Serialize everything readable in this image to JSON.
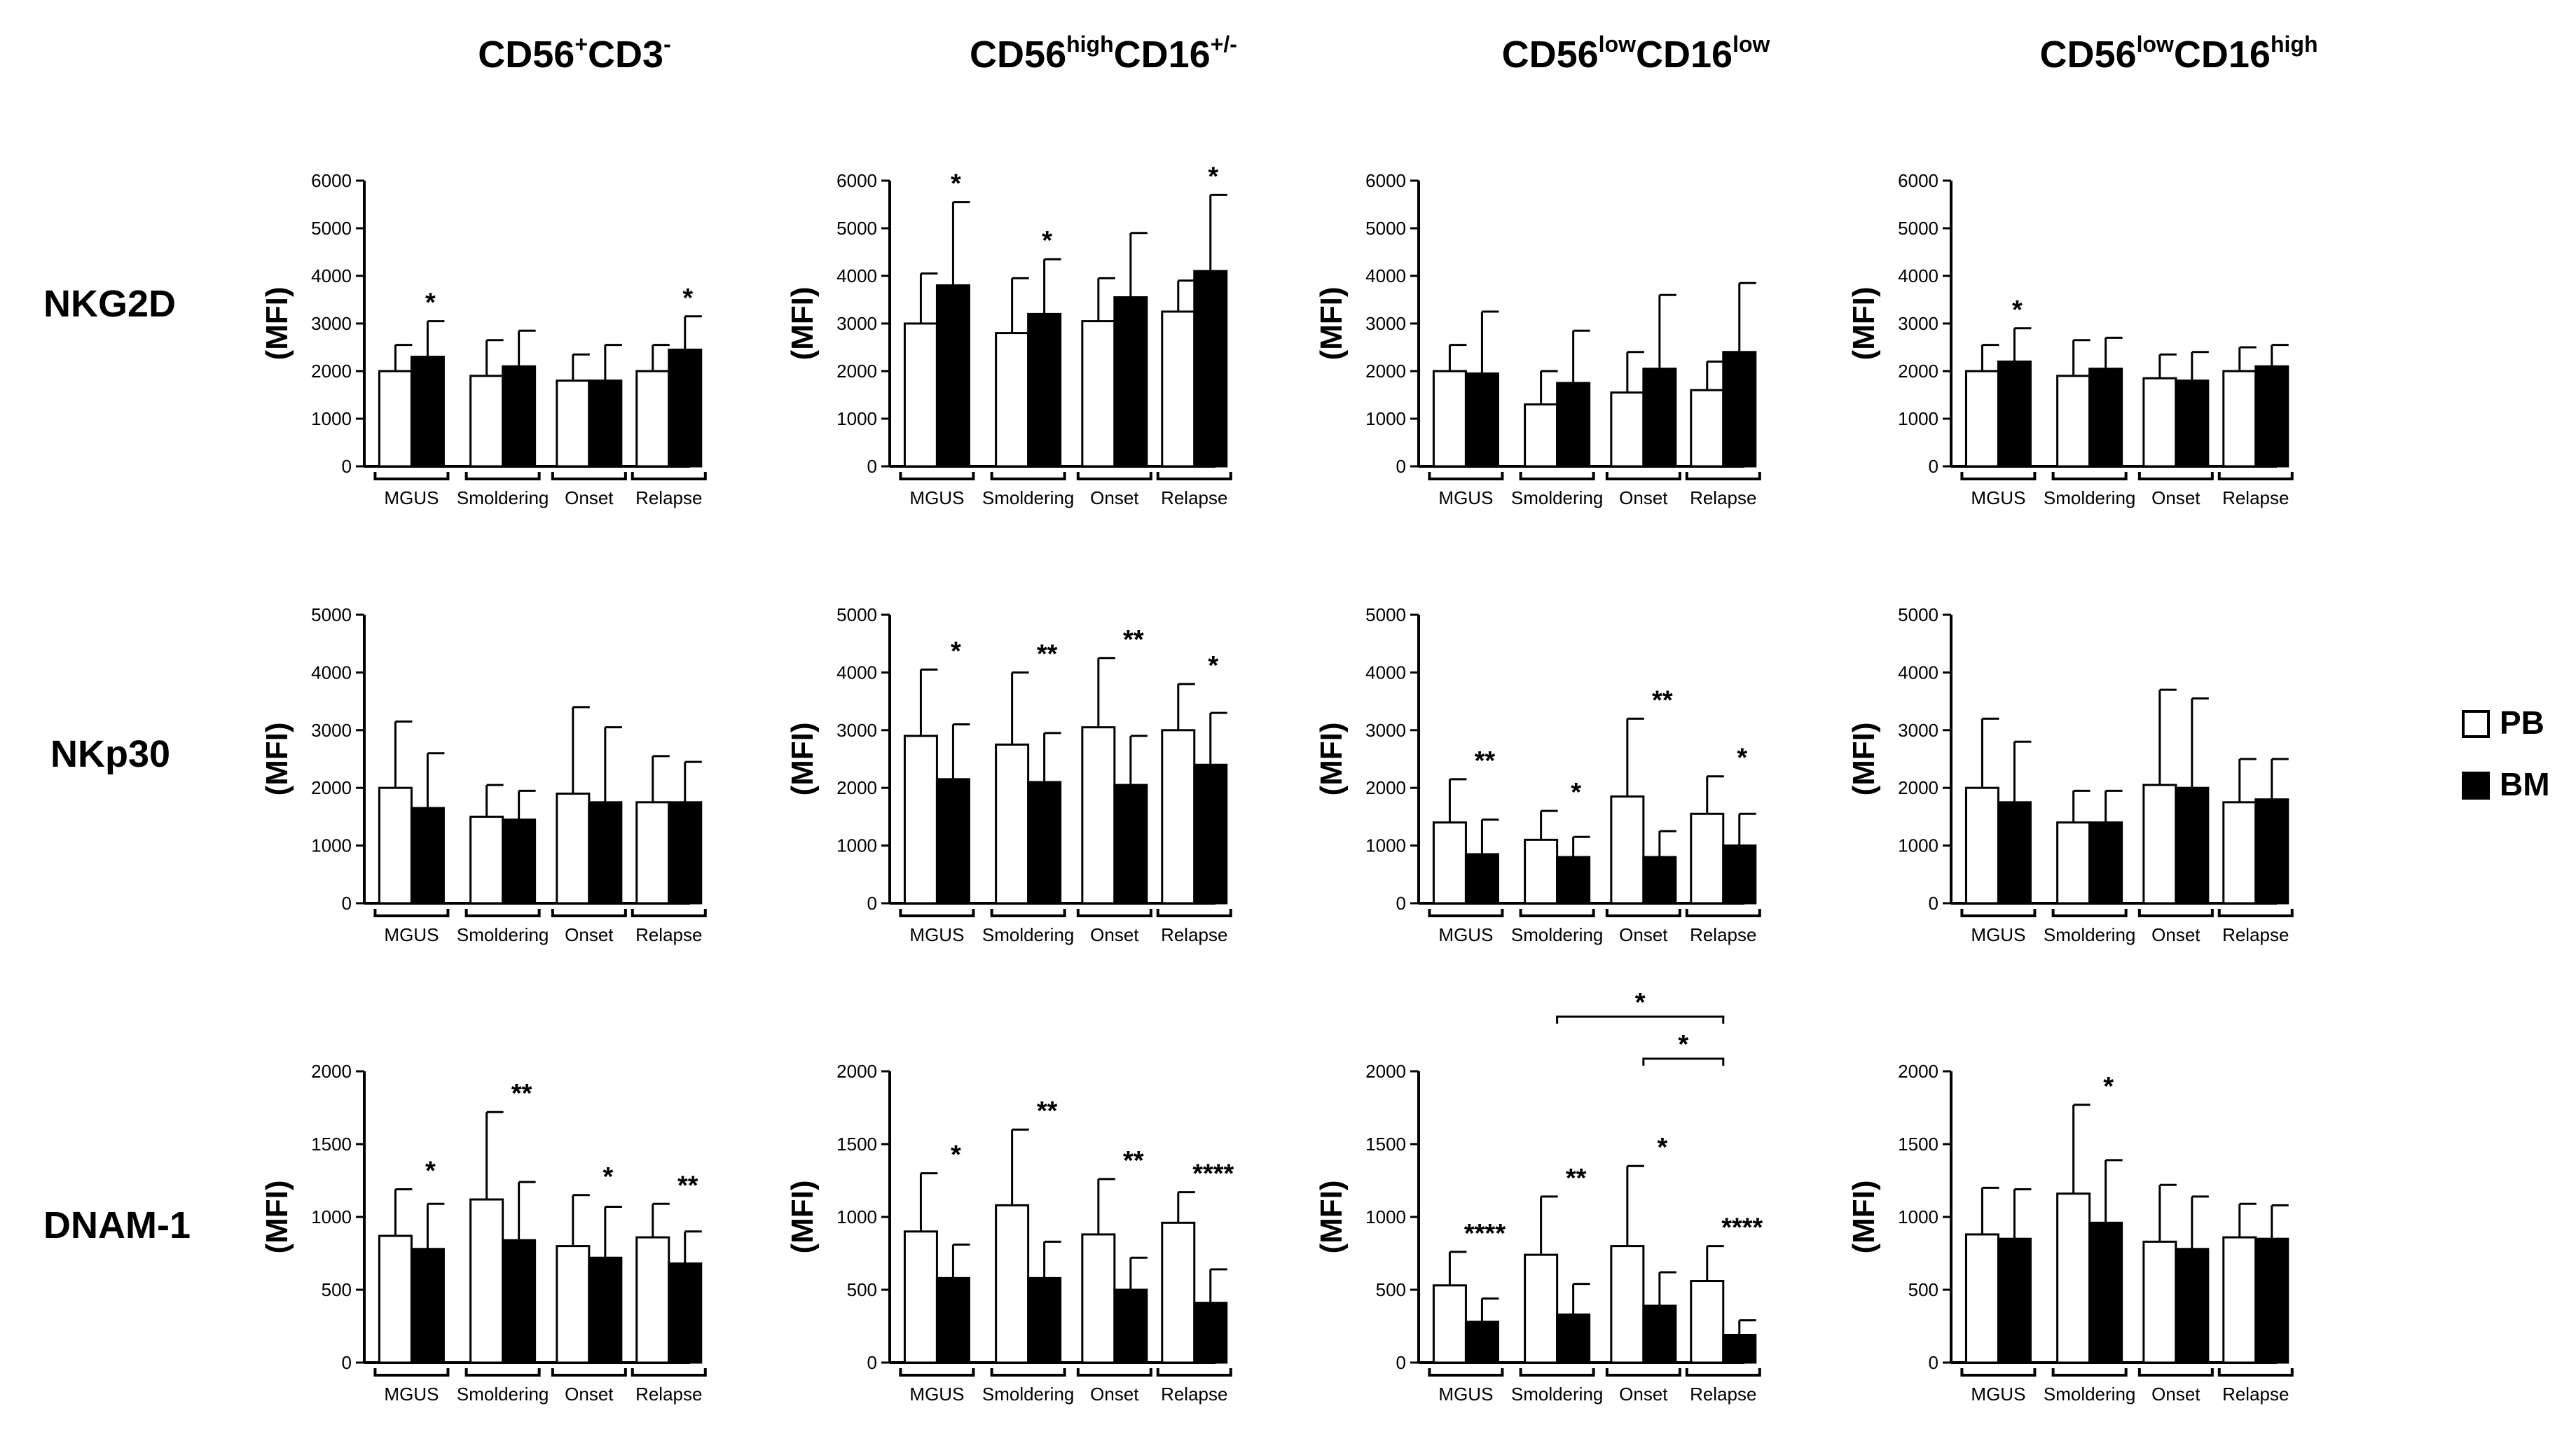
{
  "legend": [
    {
      "label": "PB",
      "fill": "#ffffff"
    },
    {
      "label": "BM",
      "fill": "#000000"
    }
  ],
  "columns": [
    {
      "base": "CD56",
      "sup1": "+",
      "mid": "CD3",
      "sup2": "-"
    },
    {
      "base": "CD56",
      "sup1": "high",
      "mid": "CD16",
      "sup2": "+/-"
    },
    {
      "base": "CD56",
      "sup1": "low",
      "mid": "CD16",
      "sup2": "low"
    },
    {
      "base": "CD56",
      "sup1": "low",
      "mid": "CD16",
      "sup2": "high"
    }
  ],
  "rows": [
    "NKG2D",
    "NKp30",
    "DNAM-1"
  ],
  "chart_data": [
    {
      "type": "bar",
      "row": "NKG2D",
      "column": "CD56+CD3-",
      "ylabel": "(MFI)",
      "ylim": [
        0,
        6000
      ],
      "yticks": [
        0,
        1000,
        2000,
        3000,
        4000,
        5000,
        6000
      ],
      "categories": [
        "MGUS",
        "Smoldering",
        "Onset",
        "Relapse"
      ],
      "series": [
        {
          "name": "PB",
          "values": [
            2000,
            1900,
            1800,
            2000
          ],
          "errors": [
            2550,
            2650,
            2350,
            2550
          ]
        },
        {
          "name": "BM",
          "values": [
            2300,
            2100,
            1800,
            2450
          ],
          "errors": [
            3050,
            2850,
            2550,
            3150
          ]
        }
      ],
      "annotations": [
        {
          "category": "MGUS",
          "text": "*"
        },
        {
          "category": "Relapse",
          "text": "*"
        }
      ]
    },
    {
      "type": "bar",
      "row": "NKG2D",
      "column": "CD56highCD16+/-",
      "ylabel": "(MFI)",
      "ylim": [
        0,
        6000
      ],
      "yticks": [
        0,
        1000,
        2000,
        3000,
        4000,
        5000,
        6000
      ],
      "categories": [
        "MGUS",
        "Smoldering",
        "Onset",
        "Relapse"
      ],
      "series": [
        {
          "name": "PB",
          "values": [
            3000,
            2800,
            3050,
            3250
          ],
          "errors": [
            4050,
            3950,
            3950,
            3900
          ]
        },
        {
          "name": "BM",
          "values": [
            3800,
            3200,
            3550,
            4100
          ],
          "errors": [
            5550,
            4350,
            4900,
            5700
          ]
        }
      ],
      "annotations": [
        {
          "category": "MGUS",
          "text": "*"
        },
        {
          "category": "Smoldering",
          "text": "*"
        },
        {
          "category": "Relapse",
          "text": "*"
        }
      ]
    },
    {
      "type": "bar",
      "row": "NKG2D",
      "column": "CD56lowCD16low",
      "ylabel": "(MFI)",
      "ylim": [
        0,
        6000
      ],
      "yticks": [
        0,
        1000,
        2000,
        3000,
        4000,
        5000,
        6000
      ],
      "categories": [
        "MGUS",
        "Smoldering",
        "Onset",
        "Relapse"
      ],
      "series": [
        {
          "name": "PB",
          "values": [
            2000,
            1300,
            1550,
            1600
          ],
          "errors": [
            2550,
            2000,
            2400,
            2200
          ]
        },
        {
          "name": "BM",
          "values": [
            1950,
            1750,
            2050,
            2400
          ],
          "errors": [
            3250,
            2850,
            3600,
            3850
          ]
        }
      ],
      "annotations": []
    },
    {
      "type": "bar",
      "row": "NKG2D",
      "column": "CD56lowCD16high",
      "ylabel": "(MFI)",
      "ylim": [
        0,
        6000
      ],
      "yticks": [
        0,
        1000,
        2000,
        3000,
        4000,
        5000,
        6000
      ],
      "categories": [
        "MGUS",
        "Smoldering",
        "Onset",
        "Relapse"
      ],
      "series": [
        {
          "name": "PB",
          "values": [
            2000,
            1900,
            1850,
            2000
          ],
          "errors": [
            2550,
            2650,
            2350,
            2500
          ]
        },
        {
          "name": "BM",
          "values": [
            2200,
            2050,
            1800,
            2100
          ],
          "errors": [
            2900,
            2700,
            2400,
            2550
          ]
        }
      ],
      "annotations": [
        {
          "category": "MGUS",
          "text": "*"
        }
      ]
    },
    {
      "type": "bar",
      "row": "NKp30",
      "column": "CD56+CD3-",
      "ylabel": "(MFI)",
      "ylim": [
        0,
        5000
      ],
      "yticks": [
        0,
        1000,
        2000,
        3000,
        4000,
        5000
      ],
      "categories": [
        "MGUS",
        "Smoldering",
        "Onset",
        "Relapse"
      ],
      "series": [
        {
          "name": "PB",
          "values": [
            2000,
            1500,
            1900,
            1750
          ],
          "errors": [
            3150,
            2050,
            3400,
            2550
          ]
        },
        {
          "name": "BM",
          "values": [
            1650,
            1450,
            1750,
            1750
          ],
          "errors": [
            2600,
            1950,
            3050,
            2450
          ]
        }
      ],
      "annotations": []
    },
    {
      "type": "bar",
      "row": "NKp30",
      "column": "CD56highCD16+/-",
      "ylabel": "(MFI)",
      "ylim": [
        0,
        5000
      ],
      "yticks": [
        0,
        1000,
        2000,
        3000,
        4000,
        5000
      ],
      "categories": [
        "MGUS",
        "Smoldering",
        "Onset",
        "Relapse"
      ],
      "series": [
        {
          "name": "PB",
          "values": [
            2900,
            2750,
            3050,
            3000
          ],
          "errors": [
            4050,
            4000,
            4250,
            3800
          ]
        },
        {
          "name": "BM",
          "values": [
            2150,
            2100,
            2050,
            2400
          ],
          "errors": [
            3100,
            2950,
            2900,
            3300
          ]
        }
      ],
      "annotations": [
        {
          "category": "MGUS",
          "text": "*"
        },
        {
          "category": "Smoldering",
          "text": "**"
        },
        {
          "category": "Onset",
          "text": "**"
        },
        {
          "category": "Relapse",
          "text": "*"
        }
      ]
    },
    {
      "type": "bar",
      "row": "NKp30",
      "column": "CD56lowCD16low",
      "ylabel": "(MFI)",
      "ylim": [
        0,
        5000
      ],
      "yticks": [
        0,
        1000,
        2000,
        3000,
        4000,
        5000
      ],
      "categories": [
        "MGUS",
        "Smoldering",
        "Onset",
        "Relapse"
      ],
      "series": [
        {
          "name": "PB",
          "values": [
            1400,
            1100,
            1850,
            1550
          ],
          "errors": [
            2150,
            1600,
            3200,
            2200
          ]
        },
        {
          "name": "BM",
          "values": [
            850,
            800,
            800,
            1000
          ],
          "errors": [
            1450,
            1150,
            1250,
            1550
          ]
        }
      ],
      "annotations": [
        {
          "category": "MGUS",
          "text": "**"
        },
        {
          "category": "Smoldering",
          "text": "*"
        },
        {
          "category": "Onset",
          "text": "**"
        },
        {
          "category": "Relapse",
          "text": "*"
        }
      ]
    },
    {
      "type": "bar",
      "row": "NKp30",
      "column": "CD56lowCD16high",
      "ylabel": "(MFI)",
      "ylim": [
        0,
        5000
      ],
      "yticks": [
        0,
        1000,
        2000,
        3000,
        4000,
        5000
      ],
      "categories": [
        "MGUS",
        "Smoldering",
        "Onset",
        "Relapse"
      ],
      "series": [
        {
          "name": "PB",
          "values": [
            2000,
            1400,
            2050,
            1750
          ],
          "errors": [
            3200,
            1950,
            3700,
            2500
          ]
        },
        {
          "name": "BM",
          "values": [
            1750,
            1400,
            2000,
            1800
          ],
          "errors": [
            2800,
            1950,
            3550,
            2500
          ]
        }
      ],
      "annotations": []
    },
    {
      "type": "bar",
      "row": "DNAM-1",
      "column": "CD56+CD3-",
      "ylabel": "(MFI)",
      "ylim": [
        0,
        2000
      ],
      "yticks": [
        0,
        500,
        1000,
        1500,
        2000
      ],
      "categories": [
        "MGUS",
        "Smoldering",
        "Onset",
        "Relapse"
      ],
      "series": [
        {
          "name": "PB",
          "values": [
            870,
            1120,
            800,
            860
          ],
          "errors": [
            1190,
            1720,
            1150,
            1090
          ]
        },
        {
          "name": "BM",
          "values": [
            780,
            840,
            720,
            680
          ],
          "errors": [
            1090,
            1240,
            1070,
            900
          ]
        }
      ],
      "annotations": [
        {
          "category": "MGUS",
          "text": "*"
        },
        {
          "category": "Smoldering",
          "text": "**"
        },
        {
          "category": "Onset",
          "text": "*"
        },
        {
          "category": "Relapse",
          "text": "**"
        }
      ]
    },
    {
      "type": "bar",
      "row": "DNAM-1",
      "column": "CD56highCD16+/-",
      "ylabel": "(MFI)",
      "ylim": [
        0,
        2000
      ],
      "yticks": [
        0,
        500,
        1000,
        1500,
        2000
      ],
      "categories": [
        "MGUS",
        "Smoldering",
        "Onset",
        "Relapse"
      ],
      "series": [
        {
          "name": "PB",
          "values": [
            900,
            1080,
            880,
            960
          ],
          "errors": [
            1300,
            1600,
            1260,
            1170
          ]
        },
        {
          "name": "BM",
          "values": [
            580,
            580,
            500,
            410
          ],
          "errors": [
            810,
            830,
            720,
            640
          ]
        }
      ],
      "annotations": [
        {
          "category": "MGUS",
          "text": "*"
        },
        {
          "category": "Smoldering",
          "text": "**"
        },
        {
          "category": "Onset",
          "text": "**"
        },
        {
          "category": "Relapse",
          "text": "****"
        }
      ]
    },
    {
      "type": "bar",
      "row": "DNAM-1",
      "column": "CD56lowCD16low",
      "ylabel": "(MFI)",
      "ylim": [
        0,
        2000
      ],
      "yticks": [
        0,
        500,
        1000,
        1500,
        2000
      ],
      "categories": [
        "MGUS",
        "Smoldering",
        "Onset",
        "Relapse"
      ],
      "series": [
        {
          "name": "PB",
          "values": [
            530,
            740,
            800,
            560
          ],
          "errors": [
            760,
            1140,
            1350,
            800
          ]
        },
        {
          "name": "BM",
          "values": [
            280,
            330,
            390,
            190
          ],
          "errors": [
            440,
            540,
            620,
            290
          ]
        }
      ],
      "annotations": [
        {
          "category": "MGUS",
          "text": "****"
        },
        {
          "category": "Smoldering",
          "text": "**"
        },
        {
          "category": "Onset",
          "text": "*"
        },
        {
          "category": "Relapse",
          "text": "****"
        }
      ],
      "comparisons": [
        {
          "from": "Smoldering",
          "to": "Relapse",
          "text": "*"
        },
        {
          "from": "Onset",
          "to": "Relapse",
          "text": "*"
        }
      ]
    },
    {
      "type": "bar",
      "row": "DNAM-1",
      "column": "CD56lowCD16high",
      "ylabel": "(MFI)",
      "ylim": [
        0,
        2000
      ],
      "yticks": [
        0,
        500,
        1000,
        1500,
        2000
      ],
      "categories": [
        "MGUS",
        "Smoldering",
        "Onset",
        "Relapse"
      ],
      "series": [
        {
          "name": "PB",
          "values": [
            880,
            1160,
            830,
            860
          ],
          "errors": [
            1200,
            1770,
            1220,
            1090
          ]
        },
        {
          "name": "BM",
          "values": [
            850,
            960,
            780,
            850
          ],
          "errors": [
            1190,
            1390,
            1140,
            1080
          ]
        }
      ],
      "annotations": [
        {
          "category": "Smoldering",
          "text": "*"
        }
      ]
    }
  ]
}
